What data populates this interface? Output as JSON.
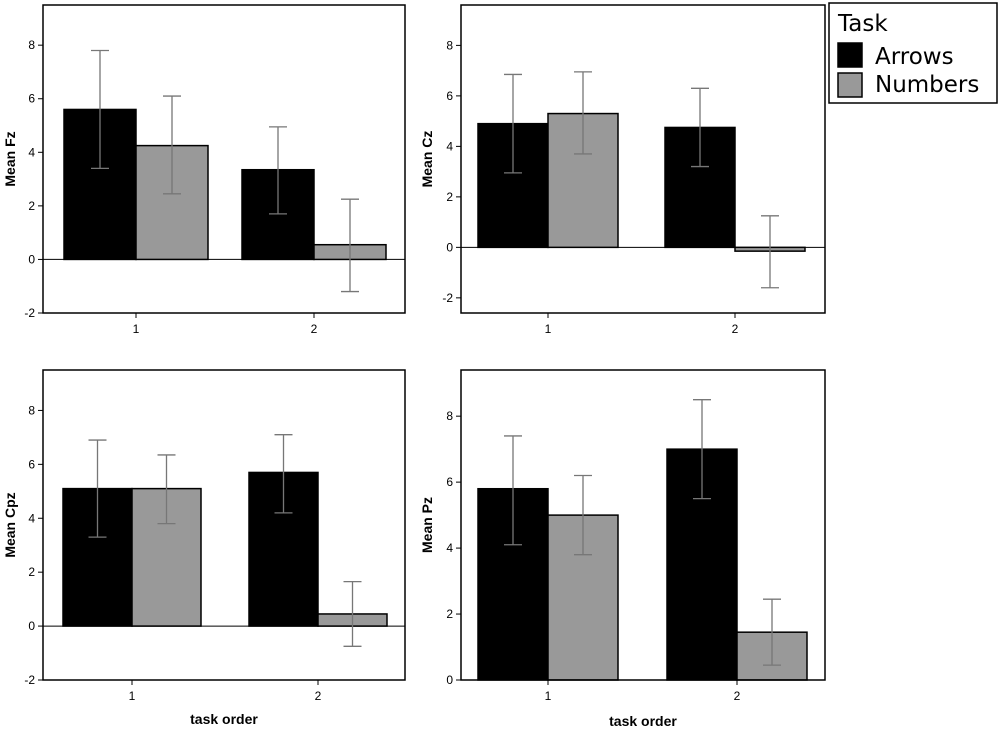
{
  "legend": {
    "title": "Task",
    "entries": [
      {
        "label": "Arrows",
        "color": "#000000"
      },
      {
        "label": "Numbers",
        "color": "#999999"
      }
    ]
  },
  "chart_data": [
    {
      "type": "bar",
      "title": "",
      "xlabel": "",
      "ylabel": "Mean Fz",
      "categories": [
        "1",
        "2"
      ],
      "ylim": [
        -2,
        9.5
      ],
      "yticks": [
        -2,
        0,
        2,
        4,
        6,
        8
      ],
      "series": [
        {
          "name": "Arrows",
          "color": "#000000",
          "values": [
            5.6,
            3.35
          ],
          "err_low": [
            3.4,
            1.7
          ],
          "err_high": [
            7.8,
            4.95
          ]
        },
        {
          "name": "Numbers",
          "color": "#999999",
          "values": [
            4.25,
            0.55
          ],
          "err_low": [
            2.45,
            -1.2
          ],
          "err_high": [
            6.1,
            2.25
          ]
        }
      ]
    },
    {
      "type": "bar",
      "title": "",
      "xlabel": "",
      "ylabel": "Mean Cz",
      "categories": [
        "1",
        "2"
      ],
      "ylim": [
        -2.6,
        9.6
      ],
      "yticks": [
        -2,
        0,
        2,
        4,
        6,
        8
      ],
      "series": [
        {
          "name": "Arrows",
          "color": "#000000",
          "values": [
            4.9,
            4.75
          ],
          "err_low": [
            2.95,
            3.2
          ],
          "err_high": [
            6.85,
            6.3
          ]
        },
        {
          "name": "Numbers",
          "color": "#999999",
          "values": [
            5.3,
            -0.15
          ],
          "err_low": [
            3.7,
            -1.6
          ],
          "err_high": [
            6.95,
            1.25
          ]
        }
      ]
    },
    {
      "type": "bar",
      "title": "",
      "xlabel": "task order",
      "ylabel": "Mean Cpz",
      "categories": [
        "1",
        "2"
      ],
      "ylim": [
        -2,
        9.5
      ],
      "yticks": [
        -2,
        0,
        2,
        4,
        6,
        8
      ],
      "series": [
        {
          "name": "Arrows",
          "color": "#000000",
          "values": [
            5.1,
            5.7
          ],
          "err_low": [
            3.3,
            4.2
          ],
          "err_high": [
            6.9,
            7.1
          ]
        },
        {
          "name": "Numbers",
          "color": "#999999",
          "values": [
            5.1,
            0.45
          ],
          "err_low": [
            3.8,
            -0.75
          ],
          "err_high": [
            6.35,
            1.65
          ]
        }
      ]
    },
    {
      "type": "bar",
      "title": "",
      "xlabel": "task order",
      "ylabel": "Mean Pz",
      "categories": [
        "1",
        "2"
      ],
      "ylim": [
        0,
        9.4
      ],
      "yticks": [
        0,
        2,
        4,
        6,
        8
      ],
      "series": [
        {
          "name": "Arrows",
          "color": "#000000",
          "values": [
            5.8,
            7.0
          ],
          "err_low": [
            4.1,
            5.5
          ],
          "err_high": [
            7.4,
            8.5
          ]
        },
        {
          "name": "Numbers",
          "color": "#999999",
          "values": [
            5.0,
            1.45
          ],
          "err_low": [
            3.8,
            0.45
          ],
          "err_high": [
            6.2,
            2.45
          ]
        }
      ]
    }
  ]
}
